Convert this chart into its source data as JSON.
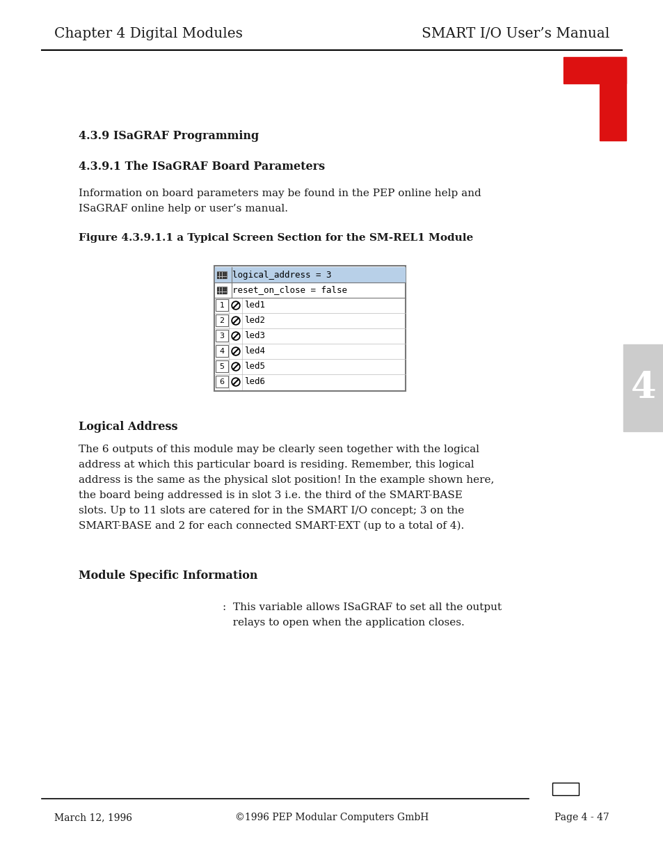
{
  "header_left": "Chapter 4 Digital Modules",
  "header_right": "SMART I/O User’s Manual",
  "footer_left": "March 12, 1996",
  "footer_center": "©1996 PEP Modular Computers GmbH",
  "footer_right": "Page 4 - 47",
  "section_title": "4.3.9 ISaGRAF Programming",
  "subsection_title": "4.3.9.1 The ISaGRAF Board Parameters",
  "intro_line1": "Information on board parameters may be found in the PEP online help and",
  "intro_line2": "ISaGRAF online help or user’s manual.",
  "figure_title": "Figure 4.3.9.1.1 a Typical Screen Section for the SM-REL1 Module",
  "logical_address_label": "logical_address = 3",
  "reset_label": "reset_on_close = false",
  "led_labels": [
    "led1",
    "led2",
    "led3",
    "led4",
    "led5",
    "led6"
  ],
  "logical_address_section": "Logical Address",
  "la_line1": "The 6 outputs of this module may be clearly seen together with the logical",
  "la_line2": "address at which this particular board is residing. Remember, this logical",
  "la_line3": "address is the same as the physical slot position! In the example shown here,",
  "la_line4": "the board being addressed is in slot 3 i.e. the third of the SMART-BASE",
  "la_line5": "slots. Up to 11 slots are catered for in the SMART I/O concept; 3 on the",
  "la_line6": "SMART-BASE and 2 for each connected SMART-EXT (up to a total of 4).",
  "module_section": "Module Specific Information",
  "module_line1": ":  This variable allows ISaGRAF to set all the output",
  "module_line2": "   relays to open when the application closes.",
  "tab_number": "4",
  "background_color": "#ffffff",
  "text_color": "#1a1a1a",
  "red_color": "#dd1111",
  "highlight_blue": "#b8d0e8",
  "tab_gray": "#cccccc",
  "panel_border": "#777777",
  "footer_rect_color": "#ffffff"
}
